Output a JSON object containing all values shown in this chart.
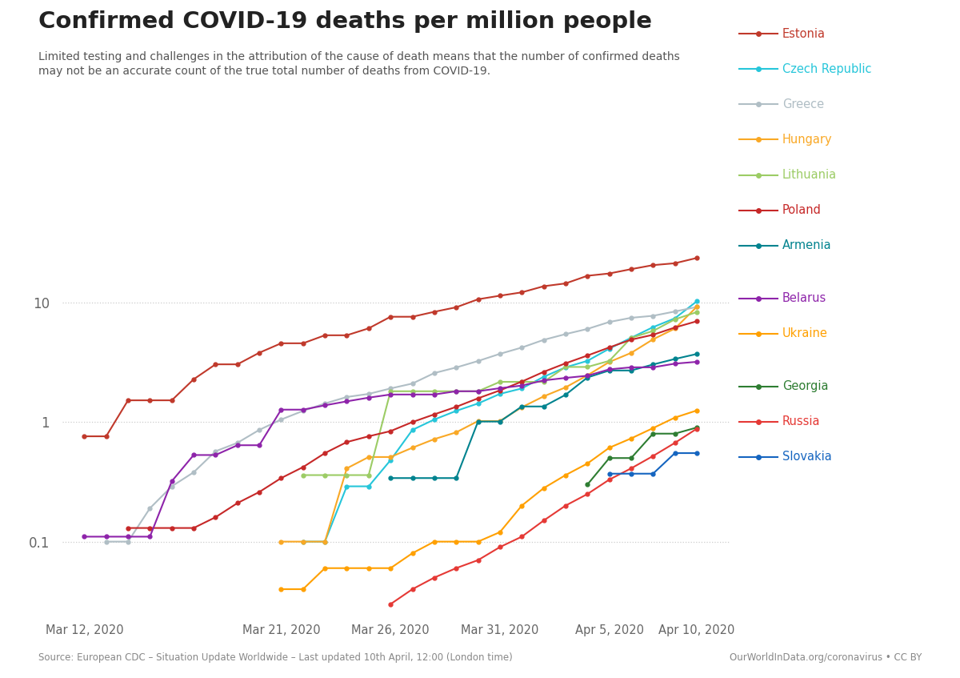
{
  "title": "Confirmed COVID-19 deaths per million people",
  "subtitle": "Limited testing and challenges in the attribution of the cause of death means that the number of confirmed deaths\nmay not be an accurate count of the true total number of deaths from COVID-19.",
  "source_left": "Source: European CDC – Situation Update Worldwide – Last updated 10th April, 12:00 (London time)",
  "source_right": "OurWorldInData.org/coronavirus • CC BY",
  "background_color": "#ffffff",
  "countries": {
    "Estonia": {
      "color": "#c0392b",
      "dates": [
        12,
        13,
        14,
        15,
        16,
        17,
        18,
        19,
        20,
        21,
        22,
        23,
        24,
        25,
        26,
        27,
        28,
        29,
        30,
        31,
        32,
        33,
        34,
        35,
        36,
        37,
        38,
        39,
        40
      ],
      "values": [
        0.76,
        0.76,
        1.52,
        1.52,
        1.52,
        2.28,
        3.04,
        3.04,
        3.8,
        4.56,
        4.56,
        5.32,
        5.32,
        6.08,
        7.6,
        7.6,
        8.36,
        9.12,
        10.64,
        11.4,
        12.16,
        13.68,
        14.44,
        16.73,
        17.49,
        19.01,
        20.54,
        21.3,
        23.58
      ]
    },
    "Czech Republic": {
      "color": "#26c6da",
      "dates": [
        22,
        23,
        24,
        25,
        26,
        27,
        28,
        29,
        30,
        31,
        32,
        33,
        34,
        35,
        36,
        37,
        38,
        39,
        40
      ],
      "values": [
        0.1,
        0.1,
        0.29,
        0.29,
        0.48,
        0.86,
        1.05,
        1.24,
        1.43,
        1.72,
        1.91,
        2.39,
        2.87,
        3.25,
        4.11,
        5.07,
        6.22,
        7.38,
        10.23
      ]
    },
    "Greece": {
      "color": "#b0bec5",
      "dates": [
        13,
        14,
        15,
        16,
        17,
        18,
        19,
        20,
        21,
        22,
        23,
        24,
        25,
        26,
        27,
        28,
        29,
        30,
        31,
        32,
        33,
        34,
        35,
        36,
        37,
        38,
        39,
        40
      ],
      "values": [
        0.1,
        0.1,
        0.19,
        0.29,
        0.38,
        0.57,
        0.67,
        0.86,
        1.05,
        1.24,
        1.43,
        1.62,
        1.72,
        1.91,
        2.1,
        2.57,
        2.86,
        3.24,
        3.72,
        4.2,
        4.87,
        5.44,
        6.01,
        6.87,
        7.45,
        7.74,
        8.41,
        9.18
      ]
    },
    "Hungary": {
      "color": "#f9a825",
      "dates": [
        21,
        22,
        23,
        24,
        25,
        26,
        27,
        28,
        29,
        30,
        31,
        32,
        33,
        34,
        35,
        36,
        37,
        38,
        39,
        40
      ],
      "values": [
        0.1,
        0.1,
        0.1,
        0.41,
        0.51,
        0.51,
        0.61,
        0.72,
        0.82,
        1.02,
        1.02,
        1.33,
        1.64,
        1.95,
        2.46,
        3.18,
        3.79,
        4.92,
        6.05,
        9.21
      ]
    },
    "Lithuania": {
      "color": "#9ccc65",
      "dates": [
        22,
        23,
        24,
        25,
        26,
        27,
        28,
        29,
        30,
        31,
        32,
        33,
        34,
        35,
        36,
        37,
        38,
        39,
        40
      ],
      "values": [
        0.36,
        0.36,
        0.36,
        0.36,
        1.81,
        1.81,
        1.81,
        1.81,
        1.81,
        2.17,
        2.17,
        2.17,
        2.89,
        2.89,
        3.25,
        5.06,
        5.78,
        7.23,
        8.31
      ]
    },
    "Poland": {
      "color": "#c62828",
      "dates": [
        14,
        15,
        16,
        17,
        18,
        19,
        20,
        21,
        22,
        23,
        24,
        25,
        26,
        27,
        28,
        29,
        30,
        31,
        32,
        33,
        34,
        35,
        36,
        37,
        38,
        39,
        40
      ],
      "values": [
        0.13,
        0.13,
        0.13,
        0.13,
        0.16,
        0.21,
        0.26,
        0.34,
        0.42,
        0.55,
        0.68,
        0.76,
        0.84,
        1.0,
        1.16,
        1.34,
        1.58,
        1.84,
        2.18,
        2.63,
        3.1,
        3.6,
        4.21,
        4.89,
        5.37,
        6.18,
        6.97
      ]
    },
    "Armenia": {
      "color": "#00838f",
      "dates": [
        26,
        27,
        28,
        29,
        30,
        31,
        32,
        33,
        34,
        35,
        36,
        37,
        38,
        39,
        40
      ],
      "values": [
        0.34,
        0.34,
        0.34,
        0.34,
        1.01,
        1.01,
        1.35,
        1.35,
        1.69,
        2.36,
        2.7,
        2.7,
        3.03,
        3.37,
        3.71
      ]
    },
    "Belarus": {
      "color": "#8e24aa",
      "dates": [
        12,
        13,
        14,
        15,
        16,
        17,
        18,
        19,
        20,
        21,
        22,
        23,
        24,
        25,
        26,
        27,
        28,
        29,
        30,
        31,
        32,
        33,
        34,
        35,
        36,
        37,
        38,
        39,
        40
      ],
      "values": [
        0.11,
        0.11,
        0.11,
        0.11,
        0.32,
        0.53,
        0.53,
        0.64,
        0.64,
        1.27,
        1.27,
        1.38,
        1.49,
        1.6,
        1.7,
        1.7,
        1.7,
        1.81,
        1.81,
        1.92,
        2.02,
        2.23,
        2.34,
        2.44,
        2.76,
        2.87,
        2.87,
        3.08,
        3.19
      ]
    },
    "Ukraine": {
      "color": "#ffa000",
      "dates": [
        21,
        22,
        23,
        24,
        25,
        26,
        27,
        28,
        29,
        30,
        31,
        32,
        33,
        34,
        35,
        36,
        37,
        38,
        39,
        40
      ],
      "values": [
        0.04,
        0.04,
        0.06,
        0.06,
        0.06,
        0.06,
        0.08,
        0.1,
        0.1,
        0.1,
        0.12,
        0.2,
        0.28,
        0.36,
        0.45,
        0.61,
        0.73,
        0.89,
        1.09,
        1.25
      ]
    },
    "Georgia": {
      "color": "#2e7d32",
      "dates": [
        35,
        36,
        37,
        38,
        39,
        40
      ],
      "values": [
        0.3,
        0.5,
        0.5,
        0.8,
        0.8,
        0.9
      ]
    },
    "Russia": {
      "color": "#e53935",
      "dates": [
        26,
        27,
        28,
        29,
        30,
        31,
        32,
        33,
        34,
        35,
        36,
        37,
        38,
        39,
        40
      ],
      "values": [
        0.03,
        0.04,
        0.05,
        0.06,
        0.07,
        0.09,
        0.11,
        0.15,
        0.2,
        0.25,
        0.33,
        0.41,
        0.52,
        0.67,
        0.88
      ]
    },
    "Slovakia": {
      "color": "#1565c0",
      "dates": [
        36,
        37,
        38,
        39,
        40
      ],
      "values": [
        0.37,
        0.37,
        0.37,
        0.55,
        0.55
      ]
    }
  },
  "x_ticks": {
    "12": "Mar 12, 2020",
    "21": "Mar 21, 2020",
    "26": "Mar 26, 2020",
    "31": "Mar 31, 2020",
    "36": "Apr 5, 2020",
    "40": "Apr 10, 2020"
  },
  "legend_order": [
    "Estonia",
    "Czech Republic",
    "Greece",
    "Hungary",
    "Lithuania",
    "Poland",
    "Armenia",
    "Belarus",
    "Ukraine",
    "Georgia",
    "Russia",
    "Slovakia"
  ],
  "legend_colors": {
    "Estonia": "#c0392b",
    "Czech Republic": "#26c6da",
    "Greece": "#b0bec5",
    "Hungary": "#f9a825",
    "Lithuania": "#9ccc65",
    "Poland": "#c62828",
    "Armenia": "#00838f",
    "Belarus": "#8e24aa",
    "Ukraine": "#ffa000",
    "Georgia": "#2e7d32",
    "Russia": "#e53935",
    "Slovakia": "#1565c0"
  },
  "ylim": [
    0.025,
    40
  ],
  "xlim": [
    11,
    41.5
  ]
}
